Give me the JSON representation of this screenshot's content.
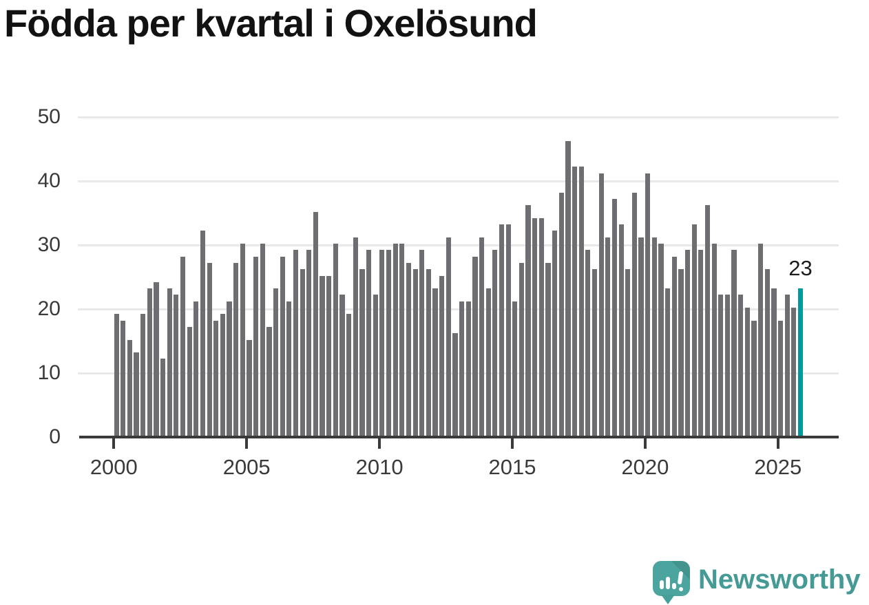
{
  "title": "Födda per kvartal i Oxelösund",
  "annotation": {
    "label": "23"
  },
  "branding": {
    "name": "Newsworthy",
    "icon": "newsworthy-speech-bubble-chart-icon"
  },
  "colors": {
    "bar": "#6e6d72",
    "highlight": "#00999d",
    "gridline": "#e9e9e9",
    "axis": "#3a3a3a",
    "tick_label": "#3a3a3a",
    "title": "#121212",
    "annotation": "#1c1c1c",
    "brand_text": "#459a96",
    "brand_icon": "#4ba49e"
  },
  "chart_data": {
    "type": "bar",
    "title": "Födda per kvartal i Oxelösund",
    "xlabel": "",
    "ylabel": "",
    "ylim": [
      0,
      50
    ],
    "grid": "horizontal",
    "legend": "none",
    "x_tick_labels": [
      "2000",
      "2005",
      "2010",
      "2015",
      "2020",
      "2025"
    ],
    "y_tick_labels": [
      "0",
      "10",
      "20",
      "30",
      "40",
      "50"
    ],
    "periodicity": "quarterly",
    "start_year": 2000,
    "values": [
      19,
      18,
      15,
      13,
      19,
      23,
      24,
      12,
      23,
      22,
      28,
      17,
      21,
      32,
      27,
      18,
      19,
      21,
      27,
      30,
      15,
      28,
      30,
      17,
      23,
      28,
      21,
      29,
      26,
      29,
      35,
      25,
      25,
      30,
      22,
      19,
      31,
      26,
      29,
      22,
      29,
      29,
      30,
      30,
      27,
      26,
      29,
      26,
      23,
      25,
      31,
      16,
      21,
      21,
      28,
      31,
      23,
      29,
      33,
      33,
      21,
      27,
      36,
      34,
      34,
      27,
      32,
      38,
      46,
      42,
      42,
      29,
      26,
      41,
      31,
      37,
      33,
      26,
      38,
      31,
      41,
      31,
      30,
      23,
      28,
      26,
      29,
      33,
      29,
      36,
      30,
      22,
      22,
      29,
      22,
      20,
      18,
      30,
      26,
      23,
      18,
      22,
      20,
      23
    ],
    "highlight_last_bar": {
      "value": 23,
      "color": "#00999d",
      "label": "23"
    }
  }
}
